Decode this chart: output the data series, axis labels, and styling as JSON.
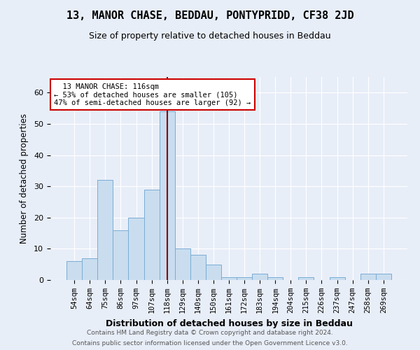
{
  "title": "13, MANOR CHASE, BEDDAU, PONTYPRIDD, CF38 2JD",
  "subtitle": "Size of property relative to detached houses in Beddau",
  "xlabel": "Distribution of detached houses by size in Beddau",
  "ylabel": "Number of detached properties",
  "categories": [
    "54sqm",
    "64sqm",
    "75sqm",
    "86sqm",
    "97sqm",
    "107sqm",
    "118sqm",
    "129sqm",
    "140sqm",
    "150sqm",
    "161sqm",
    "172sqm",
    "183sqm",
    "194sqm",
    "204sqm",
    "215sqm",
    "226sqm",
    "237sqm",
    "247sqm",
    "258sqm",
    "269sqm"
  ],
  "values": [
    6,
    7,
    32,
    16,
    20,
    29,
    54,
    10,
    8,
    5,
    1,
    1,
    2,
    1,
    0,
    1,
    0,
    1,
    0,
    2,
    2
  ],
  "bar_color": "#c9ddef",
  "bar_edge_color": "#7aadd4",
  "marker_x": "118sqm",
  "marker_color": "#8b0000",
  "annotation_title": "13 MANOR CHASE: 116sqm",
  "annotation_line1": "← 53% of detached houses are smaller (105)",
  "annotation_line2": "47% of semi-detached houses are larger (92) →",
  "annotation_box_color": "#ffffff",
  "annotation_box_edge": "#cc0000",
  "footer_line1": "Contains HM Land Registry data © Crown copyright and database right 2024.",
  "footer_line2": "Contains public sector information licensed under the Open Government Licence v3.0.",
  "ylim": [
    0,
    65
  ],
  "bg_color": "#e8eef8",
  "plot_bg_color": "#e8eef8"
}
